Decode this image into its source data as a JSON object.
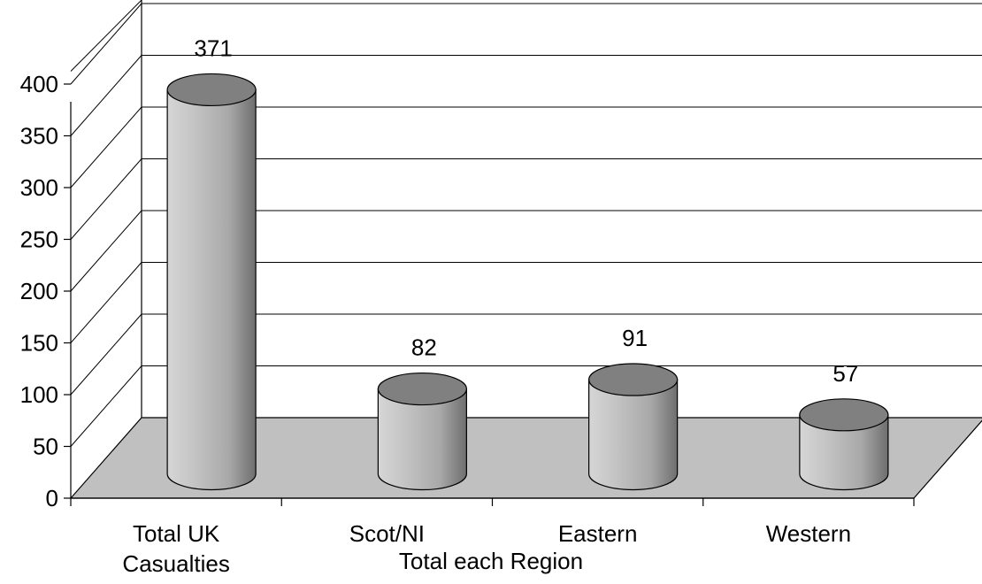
{
  "chart_data": {
    "type": "bar",
    "style": "3d-cylinder",
    "categories": [
      "Total UK Casualties",
      "Scot/NI",
      "Eastern",
      "Western"
    ],
    "category_lines": [
      [
        "Total UK",
        "Casualties"
      ],
      [
        "Scot/NI"
      ],
      [
        "Eastern"
      ],
      [
        "Western"
      ]
    ],
    "values": [
      371,
      82,
      91,
      57
    ],
    "data_labels": [
      "371",
      "82",
      "91",
      "57"
    ],
    "title": "",
    "xlabel": "Total each Region",
    "ylabel": "",
    "ylim": [
      0,
      400
    ],
    "yticks": [
      "0",
      "50",
      "100",
      "150",
      "200",
      "250",
      "300",
      "350",
      "400"
    ],
    "grid": true,
    "legend": "none",
    "colors": {
      "cylinder_body": "#bfbfbf",
      "cylinder_top": "#808080",
      "floor": "#c0c0c0",
      "axis": "#000000"
    }
  }
}
